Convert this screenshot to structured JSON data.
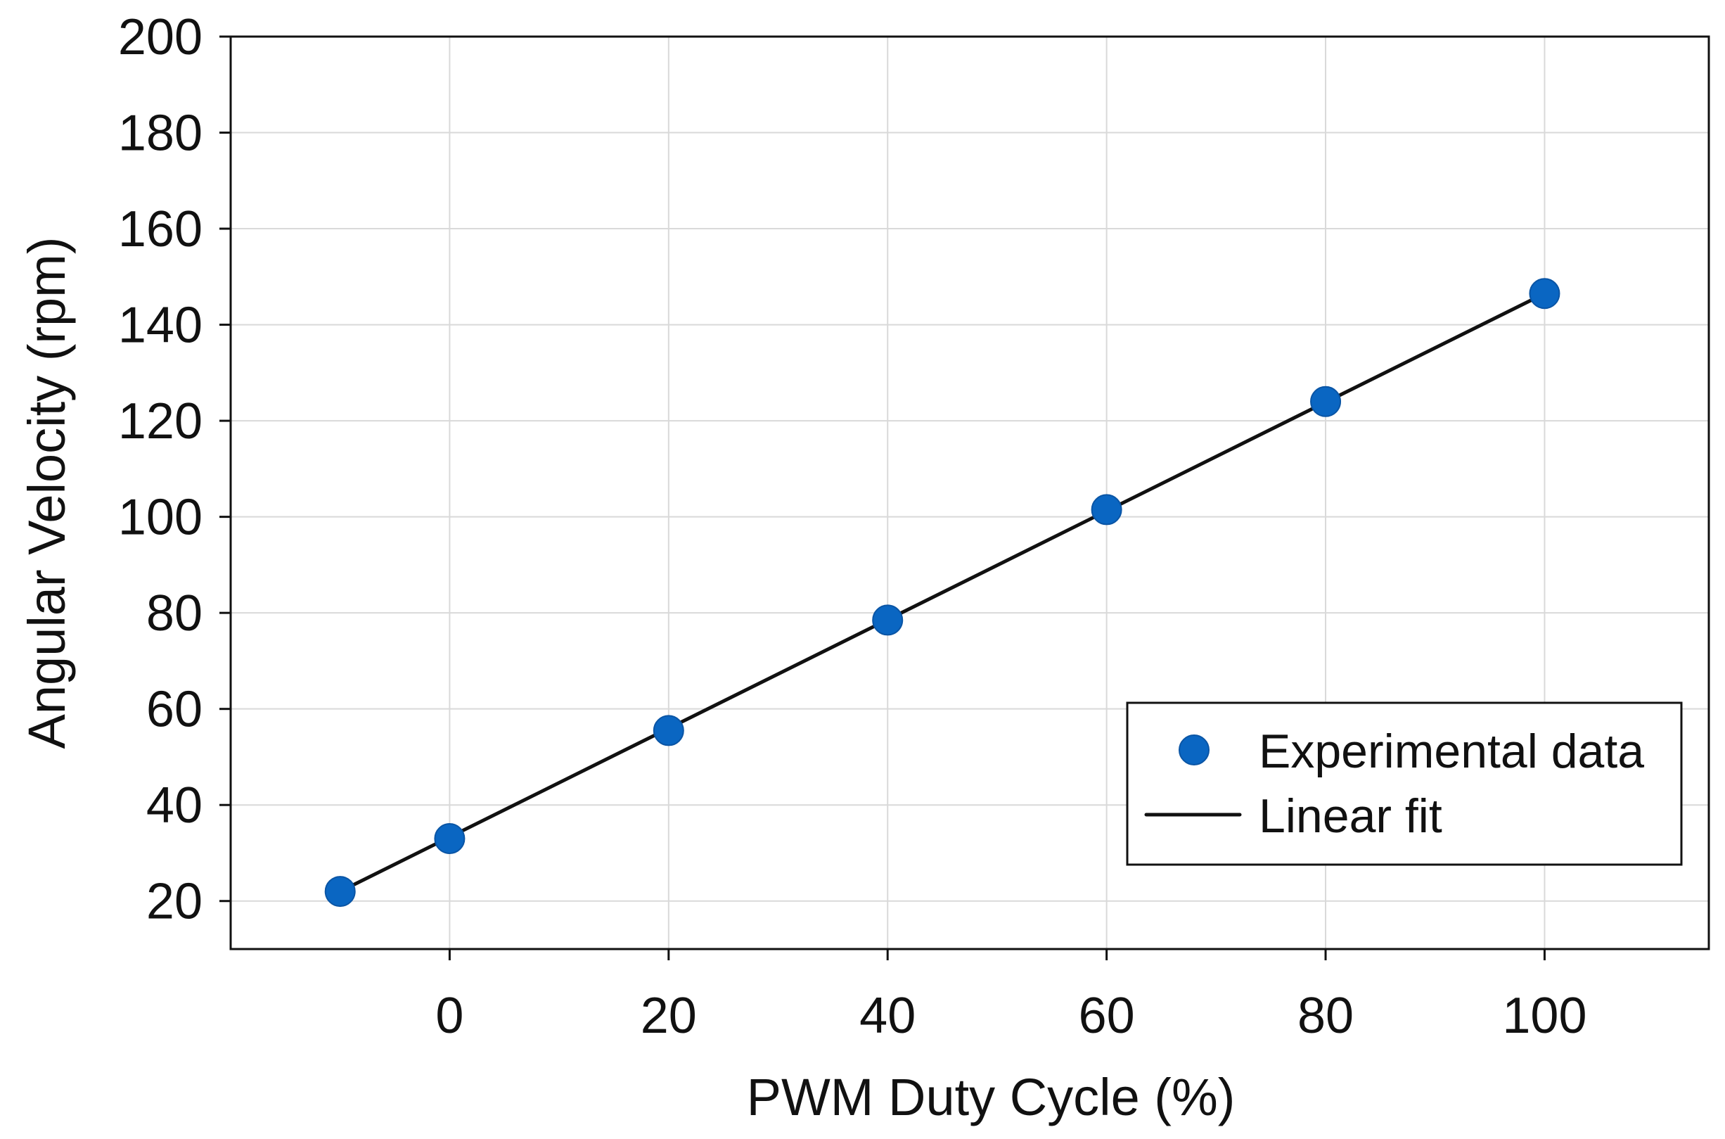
{
  "chart_data": {
    "type": "scatter",
    "title": "",
    "xlabel": "PWM Duty Cycle (%)",
    "ylabel": "Angular Velocity (rpm)",
    "xlim": [
      -20,
      115
    ],
    "ylim": [
      10,
      200
    ],
    "xticks": [
      0,
      20,
      40,
      60,
      80,
      100
    ],
    "yticks": [
      20,
      40,
      60,
      80,
      100,
      120,
      140,
      160,
      180,
      200
    ],
    "xtick_labels": [
      "0",
      "20",
      "40",
      "60",
      "80",
      "100"
    ],
    "ytick_labels": [
      "20",
      "40",
      "60",
      "80",
      "100",
      "120",
      "140",
      "160",
      "180",
      "200"
    ],
    "grid": true,
    "legend_position": "bottom-right",
    "series": [
      {
        "name": "Experimental data",
        "kind": "scatter",
        "color": "#0a66c2",
        "x": [
          -10,
          0,
          20,
          40,
          60,
          80,
          100
        ],
        "y": [
          22,
          33,
          55.5,
          78.5,
          101.5,
          124,
          146.5
        ]
      },
      {
        "name": "Linear fit",
        "kind": "line",
        "color": "#111111",
        "x": [
          -10,
          100
        ],
        "y": [
          22,
          146.5
        ]
      }
    ]
  }
}
